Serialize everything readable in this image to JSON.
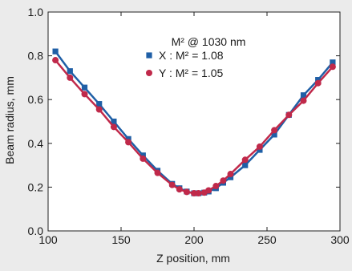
{
  "chart_data": {
    "type": "scatter",
    "title": "",
    "xlabel": "Z position, mm",
    "ylabel": "Beam radius, mm",
    "xlim": [
      100,
      300
    ],
    "ylim": [
      0.0,
      1.0
    ],
    "x_ticks": [
      100,
      150,
      200,
      250,
      300
    ],
    "y_ticks": [
      0.0,
      0.2,
      0.4,
      0.6,
      0.8,
      1.0
    ],
    "y_tick_labels": [
      "0.0",
      "0.2",
      "0.4",
      "0.6",
      "0.8",
      "1.0"
    ],
    "grid": false,
    "legend": {
      "title": "M² @ 1030 nm",
      "placement": "top-center"
    },
    "series": [
      {
        "name": "X : M² = 1.08",
        "color": "#1f5fa6",
        "marker": "square",
        "x": [
          105,
          115,
          125,
          135,
          145,
          155,
          165,
          175,
          185,
          190,
          195,
          200,
          203,
          207,
          210,
          215,
          220,
          225,
          235,
          245,
          255,
          265,
          275,
          285,
          295
        ],
        "y": [
          0.82,
          0.73,
          0.655,
          0.58,
          0.5,
          0.42,
          0.345,
          0.275,
          0.215,
          0.195,
          0.18,
          0.172,
          0.172,
          0.175,
          0.18,
          0.195,
          0.22,
          0.245,
          0.3,
          0.37,
          0.44,
          0.53,
          0.62,
          0.69,
          0.77
        ]
      },
      {
        "name": "Y : M² = 1.05",
        "color": "#c0294a",
        "marker": "circle",
        "x": [
          105,
          115,
          125,
          135,
          145,
          155,
          165,
          175,
          185,
          190,
          195,
          200,
          203,
          207,
          210,
          215,
          220,
          225,
          235,
          245,
          255,
          265,
          275,
          285,
          295
        ],
        "y": [
          0.78,
          0.7,
          0.625,
          0.555,
          0.475,
          0.405,
          0.33,
          0.265,
          0.21,
          0.19,
          0.178,
          0.172,
          0.172,
          0.175,
          0.185,
          0.205,
          0.23,
          0.26,
          0.325,
          0.385,
          0.46,
          0.53,
          0.595,
          0.675,
          0.75
        ]
      }
    ]
  }
}
